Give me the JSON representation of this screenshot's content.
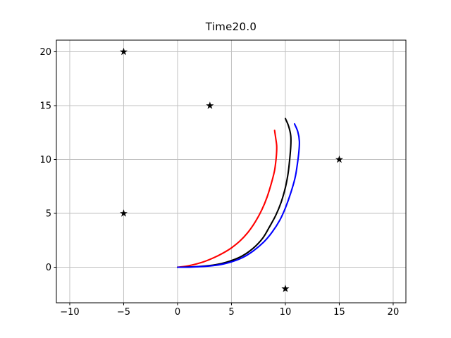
{
  "figure": {
    "background": "#ffffff",
    "grid_color": "#c2c2c2",
    "spine_color": "#000000",
    "tick_color": "#000000",
    "title_color": "#000000"
  },
  "chart_data": {
    "type": "line",
    "title": "Time20.0",
    "xlabel": "",
    "ylabel": "",
    "xlim": [
      -11.24,
      21.18
    ],
    "ylim": [
      -3.3,
      21.08
    ],
    "grid": true,
    "legend": null,
    "x_ticks": [
      {
        "v": -10,
        "label": "−10"
      },
      {
        "v": -5,
        "label": "−5"
      },
      {
        "v": 0,
        "label": "0"
      },
      {
        "v": 5,
        "label": "5"
      },
      {
        "v": 10,
        "label": "10"
      },
      {
        "v": 15,
        "label": "15"
      },
      {
        "v": 20,
        "label": "20"
      }
    ],
    "y_ticks": [
      {
        "v": 0,
        "label": "0"
      },
      {
        "v": 5,
        "label": "5"
      },
      {
        "v": 10,
        "label": "10"
      },
      {
        "v": 15,
        "label": "15"
      },
      {
        "v": 20,
        "label": "20"
      }
    ],
    "series": [
      {
        "name": "trajectory-red",
        "color": "#ff0000",
        "points": [
          [
            0,
            0
          ],
          [
            0.5,
            0.05
          ],
          [
            1,
            0.13
          ],
          [
            1.8,
            0.32
          ],
          [
            2.6,
            0.57
          ],
          [
            3.4,
            0.9
          ],
          [
            4.2,
            1.3
          ],
          [
            5,
            1.8
          ],
          [
            5.8,
            2.45
          ],
          [
            6.5,
            3.2
          ],
          [
            7.2,
            4.2
          ],
          [
            7.8,
            5.3
          ],
          [
            8.3,
            6.5
          ],
          [
            8.7,
            7.8
          ],
          [
            9.0,
            9.0
          ],
          [
            9.15,
            10.2
          ],
          [
            9.2,
            11.2
          ],
          [
            9.1,
            12.0
          ],
          [
            9.0,
            12.7
          ]
        ]
      },
      {
        "name": "trajectory-black",
        "color": "#000000",
        "points": [
          [
            0,
            0
          ],
          [
            1,
            0.02
          ],
          [
            2,
            0.07
          ],
          [
            3,
            0.16
          ],
          [
            4,
            0.33
          ],
          [
            5,
            0.62
          ],
          [
            6,
            1.05
          ],
          [
            7,
            1.75
          ],
          [
            7.9,
            2.7
          ],
          [
            8.5,
            3.7
          ],
          [
            9.1,
            4.8
          ],
          [
            9.6,
            6.0
          ],
          [
            10.0,
            7.4
          ],
          [
            10.25,
            8.7
          ],
          [
            10.4,
            10.0
          ],
          [
            10.5,
            11.2
          ],
          [
            10.5,
            12.2
          ],
          [
            10.3,
            13.1
          ],
          [
            10.0,
            13.8
          ]
        ]
      },
      {
        "name": "trajectory-blue",
        "color": "#0000ff",
        "points": [
          [
            0,
            0
          ],
          [
            1,
            0.01
          ],
          [
            2,
            0.05
          ],
          [
            3,
            0.12
          ],
          [
            4,
            0.25
          ],
          [
            5,
            0.5
          ],
          [
            6,
            0.88
          ],
          [
            7,
            1.5
          ],
          [
            8,
            2.35
          ],
          [
            8.8,
            3.3
          ],
          [
            9.5,
            4.4
          ],
          [
            10.0,
            5.5
          ],
          [
            10.5,
            6.9
          ],
          [
            10.9,
            8.3
          ],
          [
            11.1,
            9.5
          ],
          [
            11.25,
            10.7
          ],
          [
            11.3,
            11.7
          ],
          [
            11.15,
            12.6
          ],
          [
            10.85,
            13.3
          ]
        ]
      }
    ],
    "scatter": {
      "name": "star-obstacles",
      "marker": "star",
      "color": "#000000",
      "points": [
        [
          -5,
          20
        ],
        [
          3,
          15
        ],
        [
          15,
          10
        ],
        [
          -5,
          5
        ],
        [
          10,
          -2
        ]
      ]
    }
  }
}
